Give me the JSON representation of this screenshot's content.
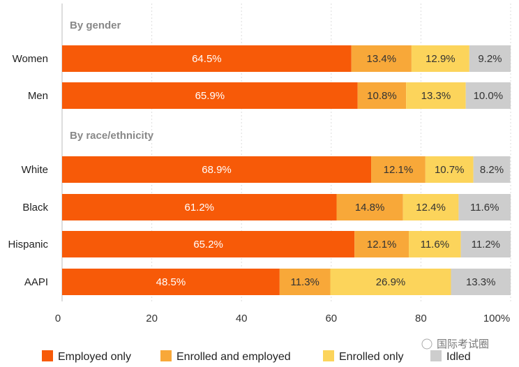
{
  "chart_data": {
    "type": "bar",
    "orientation": "horizontal",
    "stacked": true,
    "groups": [
      {
        "label": "By gender",
        "categories": [
          "Women",
          "Men"
        ]
      },
      {
        "label": "By race/ethnicity",
        "categories": [
          "White",
          "Black",
          "Hispanic",
          "AAPI"
        ]
      }
    ],
    "categories": [
      "Women",
      "Men",
      "White",
      "Black",
      "Hispanic",
      "AAPI"
    ],
    "series": [
      {
        "name": "Employed only",
        "color": "#f75a08",
        "values": [
          64.5,
          65.9,
          68.9,
          61.2,
          65.2,
          48.5
        ]
      },
      {
        "name": "Enrolled and employed",
        "color": "#f8a839",
        "values": [
          13.4,
          10.8,
          12.1,
          14.8,
          12.1,
          11.3
        ]
      },
      {
        "name": "Enrolled only",
        "color": "#fcd45b",
        "values": [
          12.9,
          13.3,
          10.7,
          12.4,
          11.6,
          26.9
        ]
      },
      {
        "name": "Idled",
        "color": "#cdcdcd",
        "values": [
          9.2,
          10.0,
          8.2,
          11.6,
          11.2,
          13.3
        ]
      }
    ],
    "xlim": [
      0,
      100
    ],
    "xticks": [
      "0",
      "20",
      "40",
      "60",
      "80",
      "100%"
    ],
    "grid": true,
    "legend": "bottom",
    "value_suffix": "%"
  },
  "watermark": "国际考试圈"
}
